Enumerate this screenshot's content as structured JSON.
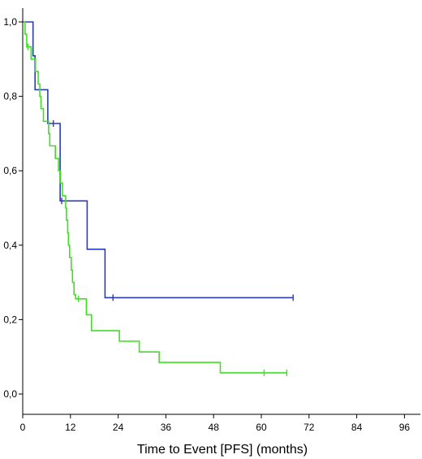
{
  "chart_data": {
    "type": "line",
    "step": true,
    "xlabel": "Time to Event [PFS] (months)",
    "ylabel": "",
    "xlim": [
      0,
      100
    ],
    "ylim": [
      0,
      1.0
    ],
    "x_ticks": [
      0,
      12,
      24,
      36,
      48,
      60,
      72,
      84,
      96
    ],
    "x_tick_labels": [
      "0",
      "12",
      "24",
      "36",
      "48",
      "60",
      "72",
      "84",
      "96"
    ],
    "y_ticks": [
      0,
      0.2,
      0.4,
      0.6,
      0.8,
      1.0
    ],
    "y_tick_labels": [
      "0,0",
      "0,2",
      "0,4",
      "0,6",
      "0,8",
      "1,0"
    ],
    "grid": false,
    "series": [
      {
        "color": "#2b3bb5",
        "points": [
          [
            0,
            1.0
          ],
          [
            2.6,
            1.0
          ],
          [
            2.6,
            0.909
          ],
          [
            3.1,
            0.909
          ],
          [
            3.1,
            0.818
          ],
          [
            6.3,
            0.818
          ],
          [
            6.3,
            0.727
          ],
          [
            9.4,
            0.727
          ],
          [
            9.4,
            0.519
          ],
          [
            16.2,
            0.519
          ],
          [
            16.2,
            0.389
          ],
          [
            20.7,
            0.389
          ],
          [
            20.7,
            0.259
          ],
          [
            68.0,
            0.259
          ]
        ],
        "censored": [
          [
            7.7,
            0.727
          ],
          [
            9.8,
            0.519
          ],
          [
            22.7,
            0.259
          ],
          [
            68.0,
            0.259
          ]
        ]
      },
      {
        "color": "#3fe024",
        "points": [
          [
            0,
            1.0
          ],
          [
            0.6,
            1.0
          ],
          [
            0.6,
            0.967
          ],
          [
            1.0,
            0.967
          ],
          [
            1.0,
            0.933
          ],
          [
            2.1,
            0.933
          ],
          [
            2.1,
            0.9
          ],
          [
            3.2,
            0.9
          ],
          [
            3.2,
            0.867
          ],
          [
            3.9,
            0.867
          ],
          [
            3.9,
            0.833
          ],
          [
            4.3,
            0.833
          ],
          [
            4.3,
            0.8
          ],
          [
            4.6,
            0.8
          ],
          [
            4.6,
            0.767
          ],
          [
            5.2,
            0.767
          ],
          [
            5.2,
            0.733
          ],
          [
            6.5,
            0.733
          ],
          [
            6.5,
            0.7
          ],
          [
            6.8,
            0.7
          ],
          [
            6.8,
            0.667
          ],
          [
            8.2,
            0.667
          ],
          [
            8.2,
            0.633
          ],
          [
            9.0,
            0.633
          ],
          [
            9.0,
            0.6
          ],
          [
            9.5,
            0.6
          ],
          [
            9.5,
            0.567
          ],
          [
            10.0,
            0.567
          ],
          [
            10.0,
            0.533
          ],
          [
            10.8,
            0.533
          ],
          [
            10.8,
            0.5
          ],
          [
            11.0,
            0.5
          ],
          [
            11.0,
            0.467
          ],
          [
            11.3,
            0.467
          ],
          [
            11.3,
            0.433
          ],
          [
            11.5,
            0.433
          ],
          [
            11.5,
            0.4
          ],
          [
            11.8,
            0.4
          ],
          [
            11.8,
            0.367
          ],
          [
            12.2,
            0.367
          ],
          [
            12.2,
            0.333
          ],
          [
            12.5,
            0.333
          ],
          [
            12.5,
            0.3
          ],
          [
            12.9,
            0.3
          ],
          [
            12.9,
            0.267
          ],
          [
            13.3,
            0.267
          ],
          [
            13.3,
            0.256
          ],
          [
            16.0,
            0.256
          ],
          [
            16.0,
            0.213
          ],
          [
            17.3,
            0.213
          ],
          [
            17.3,
            0.17
          ],
          [
            24.3,
            0.17
          ],
          [
            24.3,
            0.142
          ],
          [
            29.3,
            0.142
          ],
          [
            29.3,
            0.113
          ],
          [
            34.3,
            0.113
          ],
          [
            34.3,
            0.085
          ],
          [
            49.7,
            0.085
          ],
          [
            49.7,
            0.057
          ],
          [
            66.4,
            0.057
          ]
        ],
        "censored": [
          [
            1.3,
            0.933
          ],
          [
            14.0,
            0.256
          ],
          [
            60.7,
            0.057
          ],
          [
            66.4,
            0.057
          ]
        ]
      }
    ]
  }
}
